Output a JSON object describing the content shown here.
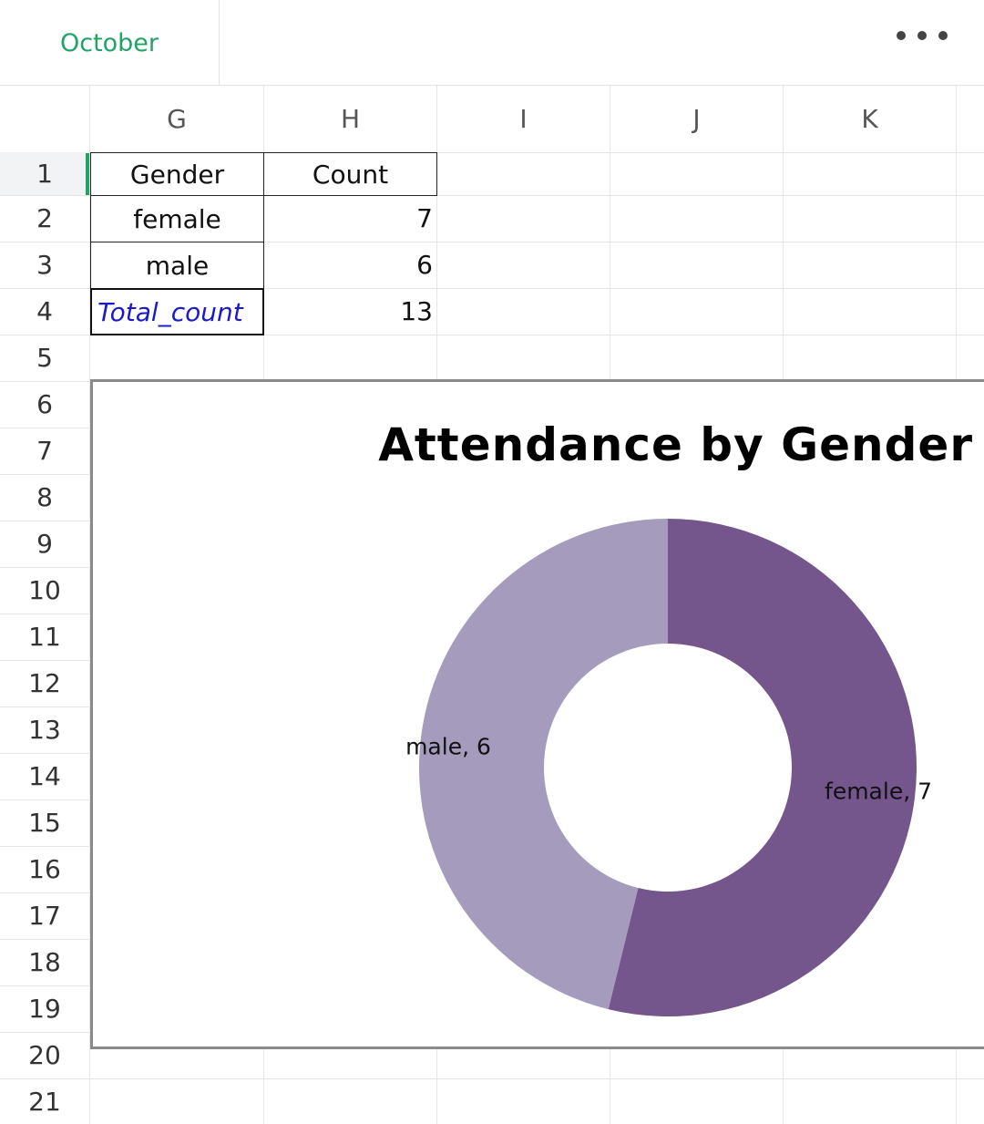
{
  "sheet": {
    "tab_label": "October"
  },
  "columns": [
    "G",
    "H",
    "I",
    "J",
    "K"
  ],
  "rows": [
    "1",
    "2",
    "3",
    "4",
    "5",
    "6",
    "7",
    "8",
    "9",
    "10",
    "11",
    "12",
    "13",
    "14",
    "15",
    "16",
    "17",
    "18",
    "19",
    "20",
    "21"
  ],
  "table": {
    "header_gender": "Gender",
    "header_count": "Count",
    "rows": [
      {
        "gender": "female",
        "count": "7"
      },
      {
        "gender": "male",
        "count": "6"
      }
    ],
    "total_label": "Total_count",
    "total_value": "13"
  },
  "chart_data": {
    "type": "pie",
    "donut": true,
    "title": "Attendance by Gender",
    "categories": [
      "female",
      "male"
    ],
    "values": [
      7,
      6
    ],
    "labels": [
      "female, 7",
      "male, 6"
    ],
    "colors": [
      "#74558c",
      "#a59bbd"
    ]
  }
}
